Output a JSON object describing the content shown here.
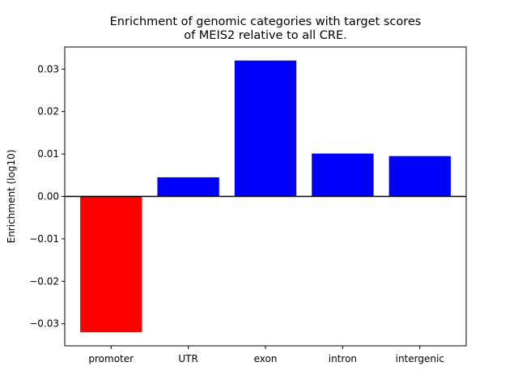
{
  "chart_data": {
    "type": "bar",
    "title_lines": [
      "Enrichment of genomic categories with target scores",
      "of MEIS2 relative to all CRE."
    ],
    "xlabel": "",
    "ylabel": "Enrichment (log10)",
    "categories": [
      "promoter",
      "UTR",
      "exon",
      "intron",
      "intergenic"
    ],
    "values": [
      -0.032,
      0.0045,
      0.032,
      0.0101,
      0.0095
    ],
    "colors": [
      "#ff0000",
      "#0000ff",
      "#0000ff",
      "#0000ff",
      "#0000ff"
    ],
    "ylim": [
      -0.0352,
      0.0352
    ],
    "yticks": [
      -0.03,
      -0.02,
      -0.01,
      0.0,
      0.01,
      0.02,
      0.03
    ],
    "ytick_labels": [
      "−0.03",
      "−0.02",
      "−0.01",
      "0.00",
      "0.01",
      "0.02",
      "0.03"
    ],
    "zero_line": true,
    "grid": false,
    "legend": "none"
  }
}
